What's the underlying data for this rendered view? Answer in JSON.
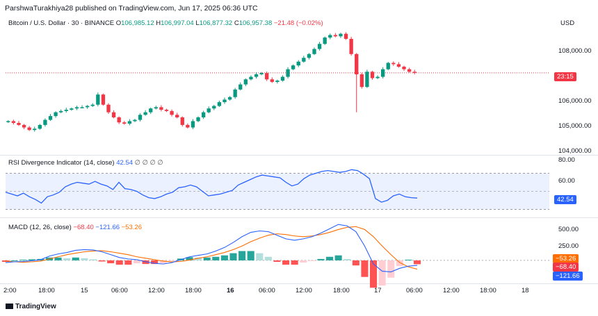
{
  "header": {
    "publisher": "ParshwaTurakhiya28 published on TradingView.com, Jun 17, 2025 06:36 UTC"
  },
  "logo_text": "TradingView",
  "price_pane": {
    "symbol": "Bitcoin / U.S. Dollar · 30 · BINANCE",
    "o_label": "O",
    "o": "106,985.12",
    "h_label": "H",
    "h": "106,997.04",
    "l_label": "L",
    "l": "106,877.32",
    "c_label": "C",
    "c": "106,957.38",
    "change": "−21.48 (−0.02%)",
    "currency": "USD",
    "y_ticks": [
      "108,000.00",
      "107,000.00",
      "106,000.00",
      "105,000.00",
      "104,000.00"
    ],
    "countdown_tag": "23:15",
    "colors": {
      "up": "#089981",
      "down": "#f23645"
    }
  },
  "rsi_pane": {
    "title": "RSI Divergence Indicator (14, close)",
    "value": "42.54",
    "extras": "∅ ∅ ∅ ∅",
    "y_ticks": [
      "80.00",
      "60.00"
    ],
    "tag": "42.54",
    "color": "#2962ff"
  },
  "macd_pane": {
    "title": "MACD (12, 26, close)",
    "macd": "−68.40",
    "signal": "−121.66",
    "hist": "−53.26",
    "y_ticks": [
      "500.00",
      "250.00"
    ],
    "tag_hist": "−53.26",
    "tag_macd": "−68.40",
    "tag_signal": "−121.66"
  },
  "x_axis": [
    "2:00",
    "18:00",
    "15",
    "06:00",
    "12:00",
    "18:00",
    "16",
    "06:00",
    "12:00",
    "18:00",
    "17",
    "06:00",
    "12:00",
    "18:00",
    "18"
  ],
  "chart_data": [
    {
      "type": "candlestick",
      "title": "Bitcoin / U.S. Dollar · 30 · BINANCE",
      "ylim": [
        103800,
        108600
      ],
      "close_series": [
        105050,
        104980,
        104900,
        104800,
        104700,
        104750,
        104900,
        105100,
        105250,
        105400,
        105450,
        105500,
        105550,
        105600,
        105600,
        105650,
        105700,
        106100,
        105700,
        105400,
        105200,
        105000,
        104950,
        105050,
        105100,
        105300,
        105400,
        105550,
        105600,
        105500,
        105450,
        105300,
        105200,
        104900,
        104800,
        105050,
        105200,
        105400,
        105550,
        105650,
        105800,
        105900,
        106000,
        106300,
        106500,
        106700,
        106800,
        106900,
        106950,
        106700,
        106600,
        106650,
        106800,
        107100,
        107250,
        107400,
        107550,
        107700,
        107900,
        108100,
        108350,
        108450,
        108400,
        108500,
        108300,
        107700,
        106900,
        106400,
        107000,
        106750,
        106800,
        107100,
        107350,
        107300,
        107200,
        107100,
        107000,
        106957
      ]
    },
    {
      "type": "line",
      "title": "RSI Divergence Indicator (14, close)",
      "ylim": [
        25,
        85
      ],
      "band": [
        30,
        70
      ],
      "series": [
        {
          "name": "RSI",
          "values": [
            49,
            47,
            45,
            48,
            44,
            41,
            37,
            44,
            46,
            49,
            55,
            58,
            60,
            59,
            58,
            61,
            58,
            56,
            52,
            60,
            53,
            52,
            50,
            46,
            43,
            42,
            44,
            47,
            49,
            54,
            55,
            57,
            55,
            50,
            45,
            46,
            47,
            49,
            51,
            57,
            60,
            63,
            66,
            68,
            67,
            66,
            65,
            60,
            56,
            58,
            64,
            68,
            70,
            72,
            73,
            72,
            71,
            72,
            74,
            73,
            69,
            64,
            42,
            38,
            40,
            45,
            47,
            44,
            43,
            42.54
          ]
        }
      ]
    },
    {
      "type": "line",
      "title": "MACD (12, 26, close)",
      "ylim": [
        -300,
        550
      ],
      "series": [
        {
          "name": "MACD",
          "values": [
            -30,
            -20,
            -15,
            -5,
            10,
            60,
            90,
            110,
            140,
            150,
            145,
            120,
            80,
            40,
            20,
            10,
            -20,
            -40,
            -50,
            -30,
            10,
            50,
            70,
            90,
            130,
            180,
            250,
            330,
            390,
            410,
            400,
            350,
            300,
            280,
            300,
            330,
            380,
            440,
            500,
            480,
            400,
            200,
            -50,
            -150,
            -160,
            -110,
            -80,
            -68.4
          ]
        },
        {
          "name": "signal",
          "values": [
            -10,
            -20,
            -25,
            -20,
            -10,
            20,
            50,
            80,
            100,
            120,
            130,
            135,
            120,
            100,
            80,
            50,
            30,
            10,
            -10,
            -20,
            -15,
            5,
            30,
            50,
            80,
            110,
            150,
            200,
            260,
            310,
            350,
            370,
            360,
            340,
            330,
            340,
            360,
            390,
            430,
            460,
            470,
            430,
            330,
            200,
            80,
            -30,
            -90,
            -121.66
          ]
        },
        {
          "name": "histogram",
          "values": [
            -20,
            0,
            10,
            15,
            20,
            40,
            40,
            30,
            40,
            30,
            15,
            -15,
            -40,
            -60,
            -60,
            -40,
            -50,
            -50,
            -40,
            -10,
            25,
            45,
            40,
            40,
            50,
            70,
            100,
            130,
            130,
            100,
            50,
            -20,
            -60,
            -60,
            -30,
            -10,
            20,
            50,
            70,
            20,
            -70,
            -230,
            -380,
            -350,
            -240,
            -80,
            10,
            -53.26
          ]
        }
      ]
    }
  ]
}
